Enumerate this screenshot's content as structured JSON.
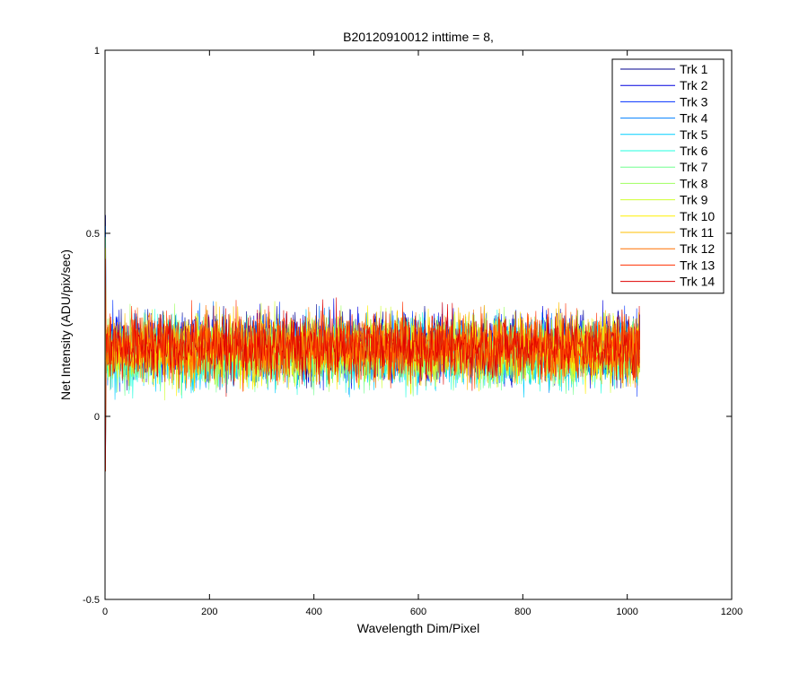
{
  "chart_data": {
    "type": "line",
    "title": "B20120910012 inttime = 8,",
    "xlabel": "Wavelength Dim/Pixel",
    "ylabel": "Net Intensity (ADU/pix/sec)",
    "xlim": [
      0,
      1200
    ],
    "ylim": [
      -0.5,
      1
    ],
    "xticks": [
      0,
      200,
      400,
      600,
      800,
      1000,
      1200
    ],
    "xtick_labels": [
      "0",
      "200",
      "400",
      "600",
      "800",
      "1000",
      "1200"
    ],
    "yticks": [
      -0.5,
      0,
      0.5,
      1
    ],
    "ytick_labels": [
      "-0.5",
      "0",
      "0.5",
      "1"
    ],
    "grid": false,
    "legend_position": "top-right",
    "x_range_of_series": [
      1,
      1024
    ],
    "noise_approx": {
      "mean": 0.18,
      "min": 0.01,
      "max": 0.34
    },
    "series": [
      {
        "name": "Trk 1",
        "color": "#00008f",
        "mean": 0.19
      },
      {
        "name": "Trk 2",
        "color": "#0000df",
        "mean": 0.19
      },
      {
        "name": "Trk 3",
        "color": "#0030ff",
        "mean": 0.19
      },
      {
        "name": "Trk 4",
        "color": "#0080ff",
        "mean": 0.18
      },
      {
        "name": "Trk 5",
        "color": "#00cfff",
        "mean": 0.17
      },
      {
        "name": "Trk 6",
        "color": "#20ffdf",
        "mean": 0.17
      },
      {
        "name": "Trk 7",
        "color": "#70ff8f",
        "mean": 0.17
      },
      {
        "name": "Trk 8",
        "color": "#9fff60",
        "mean": 0.18
      },
      {
        "name": "Trk 9",
        "color": "#cfff30",
        "mean": 0.18
      },
      {
        "name": "Trk 10",
        "color": "#ffef00",
        "mean": 0.18
      },
      {
        "name": "Trk 11",
        "color": "#ffbf00",
        "mean": 0.19
      },
      {
        "name": "Trk 12",
        "color": "#ff7000",
        "mean": 0.19
      },
      {
        "name": "Trk 13",
        "color": "#ff3000",
        "mean": 0.19
      },
      {
        "name": "Trk 14",
        "color": "#df0000",
        "mean": 0.19
      }
    ]
  }
}
